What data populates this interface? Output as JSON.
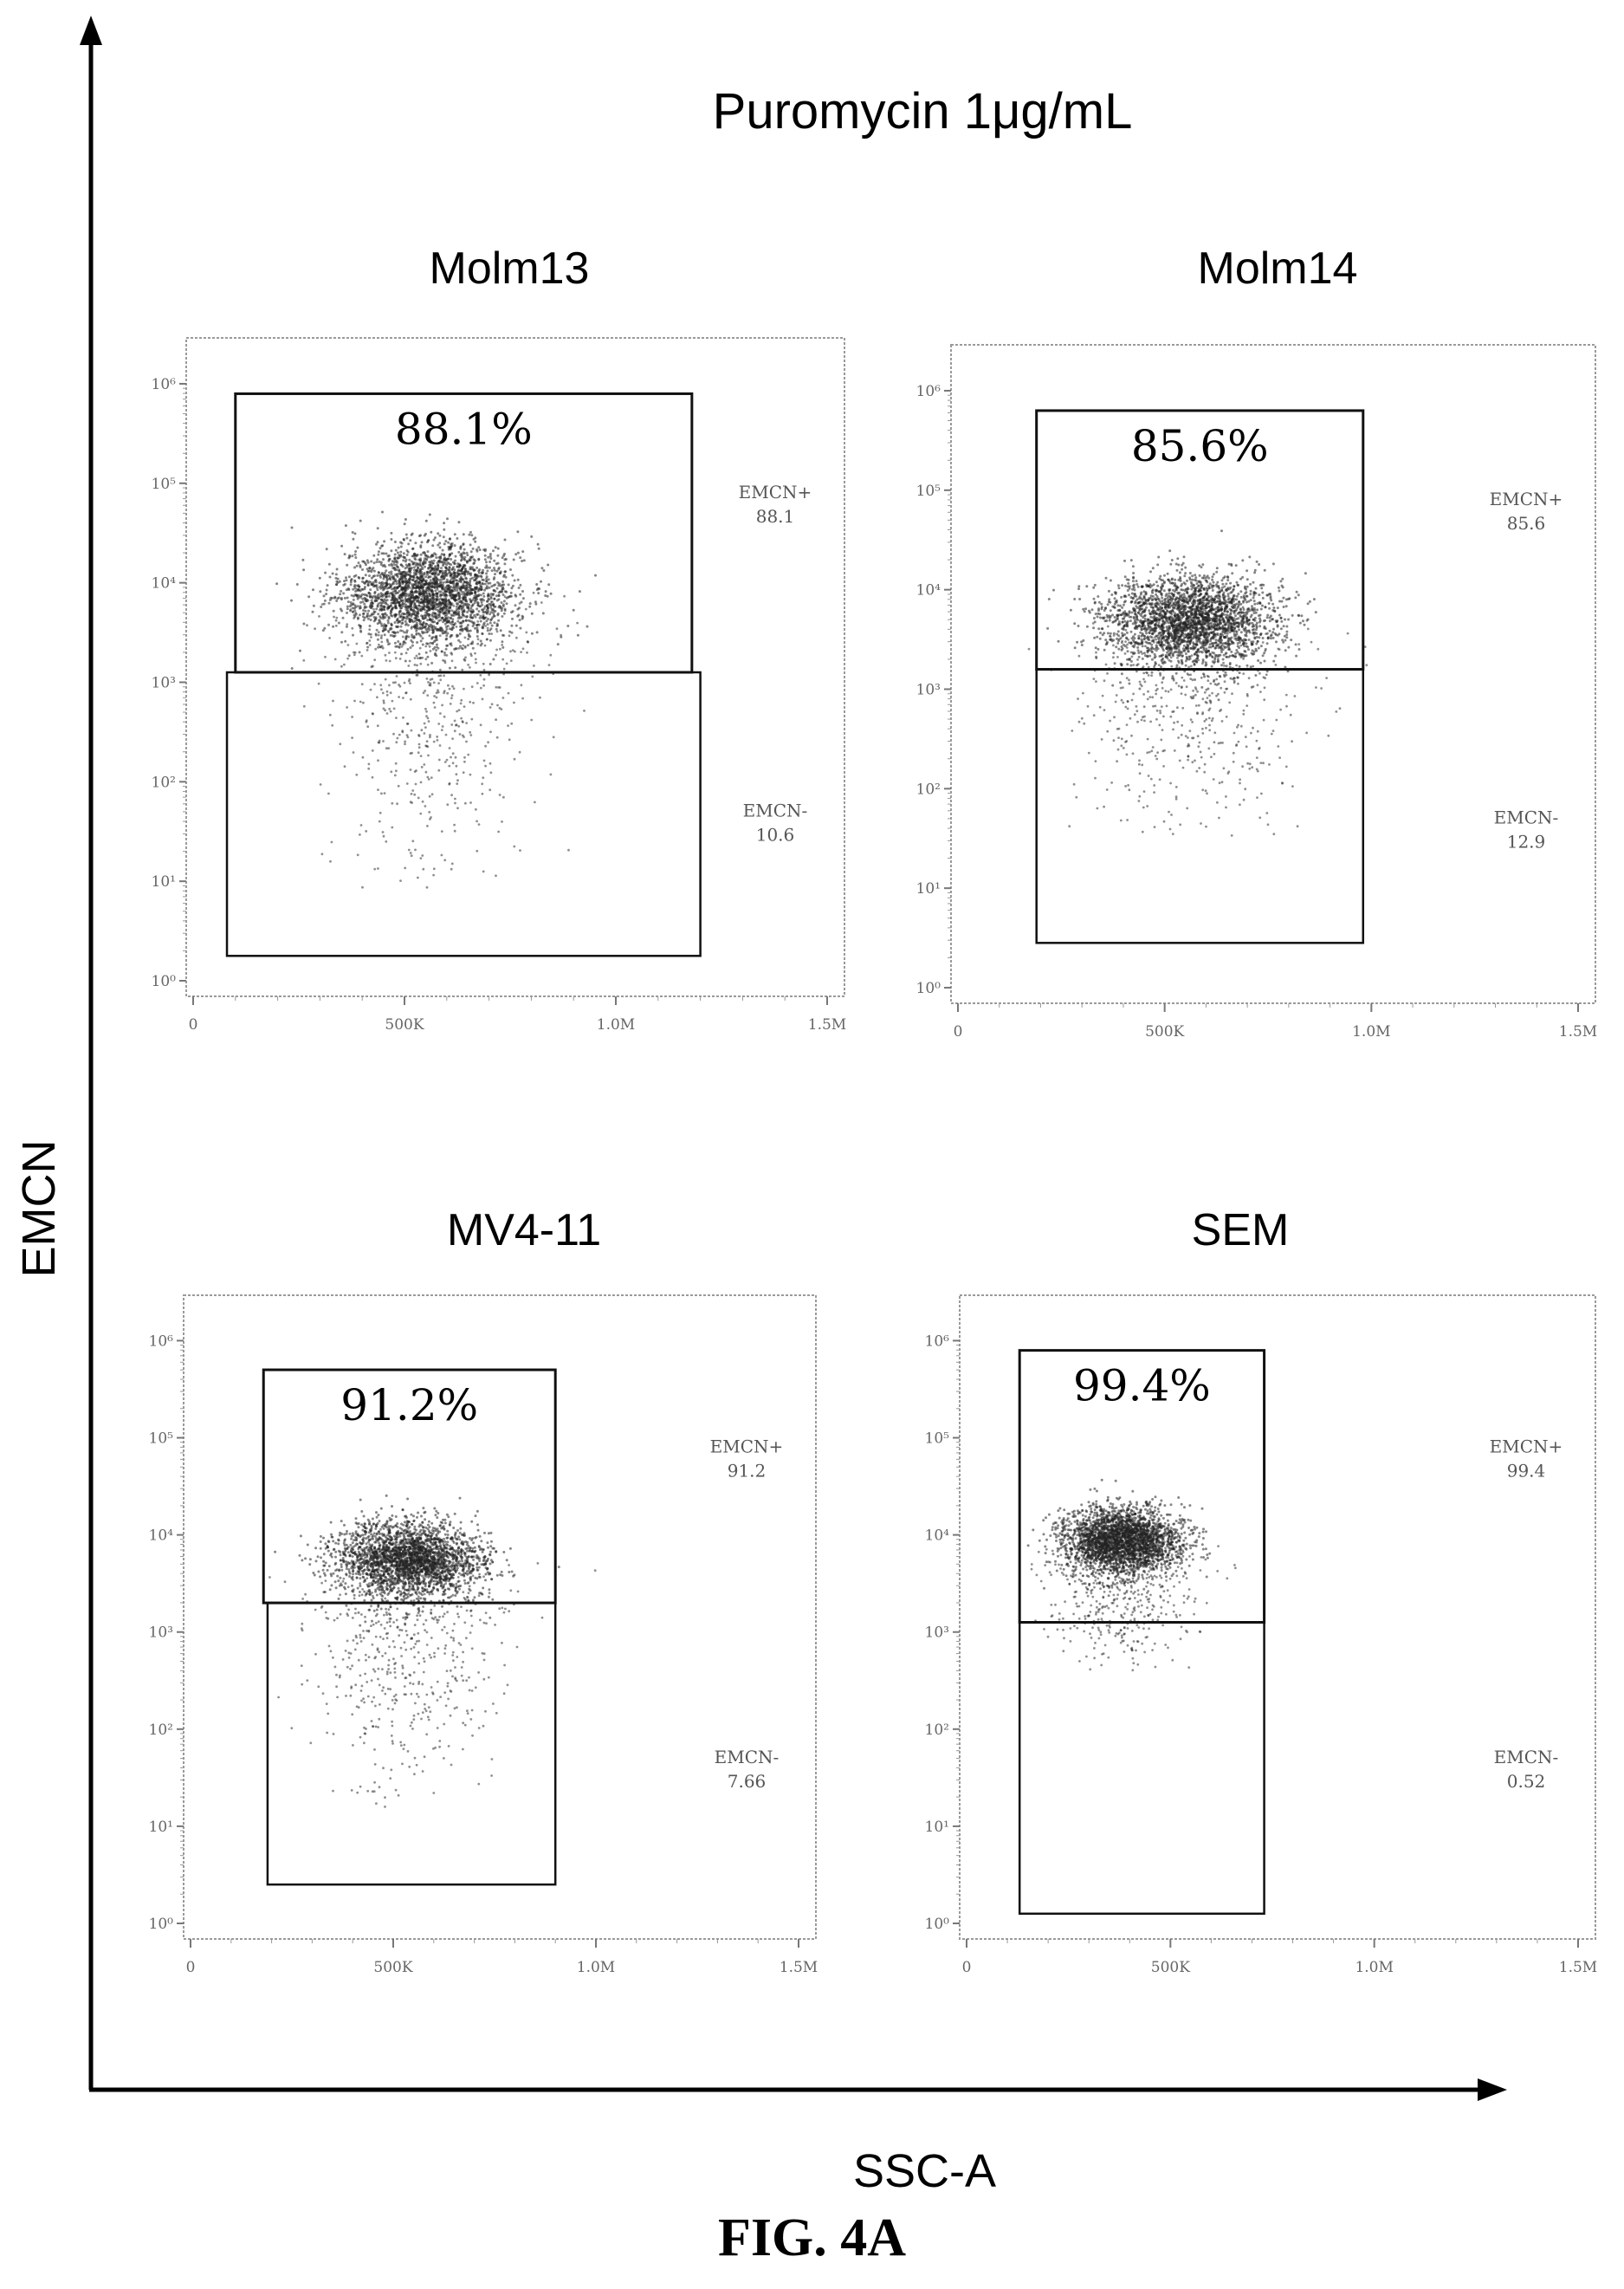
{
  "title": "Puromycin 1μg/mL",
  "figure_label": "FIG. 4A",
  "x_axis_label": "SSC-A",
  "y_axis_label": "EMCN",
  "chart_data": [
    {
      "type": "scatter",
      "title": "Molm13",
      "xlabel": "SSC-A",
      "ylabel": "EMCN",
      "x_ticks": [
        "0",
        "500K",
        "1.0M",
        "1.5M"
      ],
      "y_ticks": [
        "10⁰",
        "10¹",
        "10²",
        "10³",
        "10⁴",
        "10⁵",
        "10⁶"
      ],
      "xlim": [
        0,
        1500000
      ],
      "ylim_log10": [
        0,
        6.2
      ],
      "y_scale": "log",
      "gates": [
        {
          "name": "EMCN+",
          "label": "EMCN+",
          "value": "88.1",
          "x_range": [
            100000,
            1180000
          ],
          "y_range_log10": [
            3.1,
            5.9
          ]
        },
        {
          "name": "EMCN-",
          "label": "EMCN-",
          "value": "10.6",
          "x_range": [
            80000,
            1200000
          ],
          "y_range_log10": [
            0.25,
            3.1
          ]
        }
      ],
      "big_percent": "88.1%",
      "cluster": {
        "x_center": 560000,
        "x_spread": 230000,
        "y_center_log10": 3.9,
        "y_spread_log10": 0.45,
        "tail_to_log10": 0.9
      }
    },
    {
      "type": "scatter",
      "title": "Molm14",
      "xlabel": "SSC-A",
      "ylabel": "EMCN",
      "x_ticks": [
        "0",
        "500K",
        "1.0M",
        "1.5M"
      ],
      "y_ticks": [
        "10⁰",
        "10¹",
        "10²",
        "10³",
        "10⁴",
        "10⁵",
        "10⁶"
      ],
      "xlim": [
        0,
        1500000
      ],
      "ylim_log10": [
        0,
        6.2
      ],
      "y_scale": "log",
      "gates": [
        {
          "name": "EMCN+",
          "label": "EMCN+",
          "value": "85.6",
          "x_range": [
            190000,
            980000
          ],
          "y_range_log10": [
            3.2,
            5.8
          ]
        },
        {
          "name": "EMCN-",
          "label": "EMCN-",
          "value": "12.9",
          "x_range": [
            190000,
            980000
          ],
          "y_range_log10": [
            0.45,
            3.2
          ]
        }
      ],
      "big_percent": "85.6%",
      "cluster": {
        "x_center": 560000,
        "x_spread": 230000,
        "y_center_log10": 3.7,
        "y_spread_log10": 0.4,
        "tail_to_log10": 1.5
      }
    },
    {
      "type": "scatter",
      "title": "MV4-11",
      "xlabel": "SSC-A",
      "ylabel": "EMCN",
      "x_ticks": [
        "0",
        "500K",
        "1.0M",
        "1.5M"
      ],
      "y_ticks": [
        "10⁰",
        "10¹",
        "10²",
        "10³",
        "10⁴",
        "10⁵",
        "10⁶"
      ],
      "xlim": [
        0,
        1500000
      ],
      "ylim_log10": [
        0,
        6.2
      ],
      "y_scale": "log",
      "gates": [
        {
          "name": "EMCN+",
          "label": "EMCN+",
          "value": "91.2",
          "x_range": [
            180000,
            900000
          ],
          "y_range_log10": [
            3.3,
            5.7
          ]
        },
        {
          "name": "EMCN-",
          "label": "EMCN-",
          "value": "7.66",
          "x_range": [
            190000,
            900000
          ],
          "y_range_log10": [
            0.4,
            3.3
          ]
        }
      ],
      "big_percent": "91.2%",
      "cluster": {
        "x_center": 540000,
        "x_spread": 200000,
        "y_center_log10": 3.75,
        "y_spread_log10": 0.35,
        "tail_to_log10": 1.2
      }
    },
    {
      "type": "scatter",
      "title": "SEM",
      "xlabel": "SSC-A",
      "ylabel": "EMCN",
      "x_ticks": [
        "0",
        "500K",
        "1.0M",
        "1.5M"
      ],
      "y_ticks": [
        "10⁰",
        "10¹",
        "10²",
        "10³",
        "10⁴",
        "10⁵",
        "10⁶"
      ],
      "xlim": [
        0,
        1500000
      ],
      "ylim_log10": [
        0,
        6.2
      ],
      "y_scale": "log",
      "gates": [
        {
          "name": "EMCN+",
          "label": "EMCN+",
          "value": "99.4",
          "x_range": [
            130000,
            730000
          ],
          "y_range_log10": [
            3.1,
            5.9
          ]
        },
        {
          "name": "EMCN-",
          "label": "EMCN-",
          "value": "0.52",
          "x_range": [
            130000,
            730000
          ],
          "y_range_log10": [
            0.1,
            3.1
          ]
        }
      ],
      "big_percent": "99.4%",
      "cluster": {
        "x_center": 380000,
        "x_spread": 160000,
        "y_center_log10": 3.95,
        "y_spread_log10": 0.3,
        "tail_to_log10": 2.6
      }
    }
  ]
}
